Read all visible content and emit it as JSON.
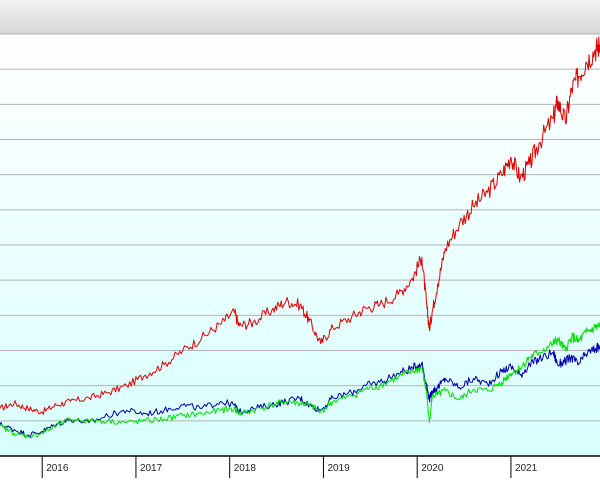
{
  "chart_data": {
    "type": "line",
    "title": "",
    "xlabel": "",
    "ylabel": "",
    "x_tick_labels": [
      "2016",
      "2017",
      "2018",
      "2019",
      "2020",
      "2021"
    ],
    "xlim": [
      2015.55,
      2021.95
    ],
    "ylim": [
      0,
      12
    ],
    "grid": true,
    "legend": "none",
    "colors": {
      "background_top": "#ffffff",
      "background_bottom": "#d8ffff",
      "grid": "#b4b4b4",
      "header_bar": "#dcdcdc",
      "axis": "#000000"
    },
    "series": [
      {
        "color": "#dd0000",
        "x": [
          2015.55,
          2015.7,
          2015.85,
          2016.0,
          2016.15,
          2016.3,
          2016.5,
          2016.7,
          2016.9,
          2017.1,
          2017.3,
          2017.5,
          2017.7,
          2017.9,
          2018.05,
          2018.1,
          2018.25,
          2018.45,
          2018.6,
          2018.75,
          2018.85,
          2018.97,
          2019.1,
          2019.3,
          2019.45,
          2019.6,
          2019.8,
          2019.95,
          2020.05,
          2020.1,
          2020.13,
          2020.16,
          2020.22,
          2020.3,
          2020.45,
          2020.6,
          2020.75,
          2020.9,
          2021.0,
          2021.1,
          2021.2,
          2021.3,
          2021.45,
          2021.5,
          2021.58,
          2021.65,
          2021.72,
          2021.8,
          2021.9,
          2021.95
        ],
        "values": [
          1.35,
          1.5,
          1.35,
          1.25,
          1.45,
          1.55,
          1.65,
          1.8,
          2.0,
          2.3,
          2.6,
          3.0,
          3.35,
          3.75,
          4.1,
          3.7,
          3.8,
          4.15,
          4.4,
          4.3,
          3.85,
          3.2,
          3.65,
          3.95,
          4.2,
          4.3,
          4.6,
          5.05,
          5.65,
          4.3,
          3.6,
          4.1,
          4.9,
          5.9,
          6.6,
          7.1,
          7.5,
          8.0,
          8.5,
          7.9,
          8.3,
          8.9,
          9.6,
          10.1,
          9.5,
          10.45,
          10.8,
          11.2,
          11.55,
          11.7
        ]
      },
      {
        "color": "#0000aa",
        "x": [
          2015.55,
          2015.7,
          2015.85,
          2016.0,
          2016.15,
          2016.3,
          2016.5,
          2016.7,
          2016.9,
          2017.1,
          2017.3,
          2017.5,
          2017.7,
          2017.9,
          2018.05,
          2018.1,
          2018.25,
          2018.45,
          2018.6,
          2018.75,
          2018.85,
          2018.97,
          2019.1,
          2019.3,
          2019.45,
          2019.6,
          2019.8,
          2019.95,
          2020.05,
          2020.1,
          2020.13,
          2020.16,
          2020.22,
          2020.3,
          2020.45,
          2020.6,
          2020.75,
          2020.9,
          2021.0,
          2021.1,
          2021.2,
          2021.3,
          2021.45,
          2021.5,
          2021.58,
          2021.65,
          2021.72,
          2021.8,
          2021.9,
          2021.95
        ],
        "values": [
          0.9,
          0.75,
          0.6,
          0.7,
          0.9,
          1.05,
          0.95,
          1.15,
          1.3,
          1.2,
          1.3,
          1.45,
          1.35,
          1.55,
          1.45,
          1.25,
          1.35,
          1.45,
          1.55,
          1.65,
          1.45,
          1.3,
          1.65,
          1.8,
          2.0,
          2.1,
          2.35,
          2.5,
          2.65,
          2.0,
          1.6,
          1.85,
          1.95,
          2.2,
          1.95,
          2.2,
          2.05,
          2.4,
          2.55,
          2.3,
          2.6,
          2.75,
          2.95,
          2.6,
          2.7,
          2.8,
          2.6,
          2.9,
          3.05,
          3.1
        ]
      },
      {
        "color": "#00dd00",
        "x": [
          2015.55,
          2015.7,
          2015.85,
          2016.0,
          2016.15,
          2016.3,
          2016.5,
          2016.7,
          2016.9,
          2017.1,
          2017.3,
          2017.5,
          2017.7,
          2017.9,
          2018.05,
          2018.1,
          2018.25,
          2018.45,
          2018.6,
          2018.75,
          2018.85,
          2018.97,
          2019.1,
          2019.3,
          2019.45,
          2019.6,
          2019.8,
          2019.95,
          2020.05,
          2020.1,
          2020.13,
          2020.16,
          2020.22,
          2020.3,
          2020.45,
          2020.6,
          2020.75,
          2020.9,
          2021.0,
          2021.1,
          2021.2,
          2021.3,
          2021.45,
          2021.5,
          2021.58,
          2021.65,
          2021.72,
          2021.8,
          2021.9,
          2021.95
        ],
        "values": [
          0.85,
          0.65,
          0.55,
          0.65,
          0.85,
          1.05,
          1.0,
          1.0,
          0.95,
          1.0,
          1.05,
          1.15,
          1.2,
          1.3,
          1.35,
          1.2,
          1.3,
          1.45,
          1.55,
          1.5,
          1.45,
          1.25,
          1.55,
          1.7,
          1.9,
          2.0,
          2.25,
          2.4,
          2.5,
          1.8,
          0.95,
          1.7,
          1.75,
          1.85,
          1.6,
          1.9,
          1.85,
          2.1,
          2.35,
          2.5,
          2.8,
          2.95,
          3.2,
          3.3,
          3.0,
          3.4,
          3.25,
          3.5,
          3.65,
          3.7
        ]
      }
    ]
  }
}
